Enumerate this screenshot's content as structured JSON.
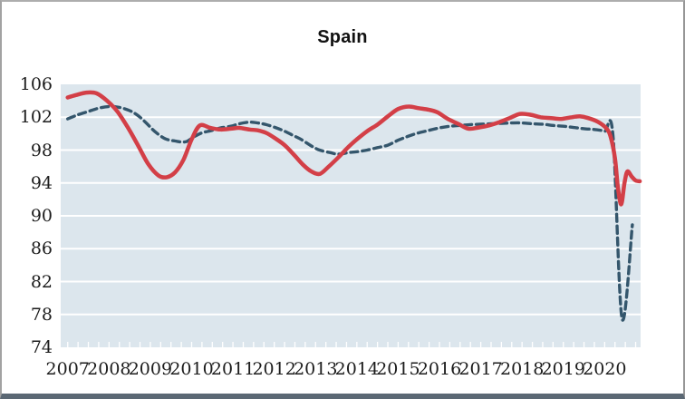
{
  "window": {
    "background": "#ffffff",
    "frame_border_color": "#a2a2a2",
    "frame_bottom_bar_color": "#5b6874"
  },
  "chart_data": {
    "type": "line",
    "title": "Spain",
    "xlabel": "",
    "ylabel": "",
    "xlim": [
      2006.83,
      2020.87
    ],
    "ylim": [
      74,
      106
    ],
    "y_ticks": [
      106,
      102,
      98,
      94,
      90,
      86,
      82,
      78,
      74
    ],
    "x_tick_years": [
      2007,
      2008,
      2009,
      2010,
      2011,
      2012,
      2013,
      2014,
      2015,
      2016,
      2017,
      2018,
      2019,
      2020
    ],
    "minor_x_tick_interval_years": 0.25,
    "grid": "horizontal",
    "gridline_color": "#ffffff",
    "plot_background": "#dce6ed",
    "axis_text_color": "#1c1c1c",
    "legend": "none",
    "series": [
      {
        "name": "red-solid",
        "style": "solid",
        "color": "#d33f47",
        "stroke_width": 4.5,
        "points": [
          [
            2007.0,
            104.4
          ],
          [
            2007.2,
            104.7
          ],
          [
            2007.45,
            105.0
          ],
          [
            2007.7,
            104.9
          ],
          [
            2007.95,
            104.0
          ],
          [
            2008.2,
            102.7
          ],
          [
            2008.45,
            100.8
          ],
          [
            2008.7,
            98.6
          ],
          [
            2008.95,
            96.3
          ],
          [
            2009.2,
            94.9
          ],
          [
            2009.4,
            94.7
          ],
          [
            2009.6,
            95.3
          ],
          [
            2009.8,
            96.8
          ],
          [
            2010.0,
            99.3
          ],
          [
            2010.2,
            101.0
          ],
          [
            2010.45,
            100.7
          ],
          [
            2010.7,
            100.5
          ],
          [
            2010.95,
            100.6
          ],
          [
            2011.15,
            100.7
          ],
          [
            2011.4,
            100.5
          ],
          [
            2011.6,
            100.4
          ],
          [
            2011.8,
            100.1
          ],
          [
            2012.0,
            99.5
          ],
          [
            2012.25,
            98.6
          ],
          [
            2012.5,
            97.3
          ],
          [
            2012.7,
            96.2
          ],
          [
            2012.9,
            95.4
          ],
          [
            2013.1,
            95.1
          ],
          [
            2013.3,
            95.9
          ],
          [
            2013.55,
            97.1
          ],
          [
            2013.8,
            98.4
          ],
          [
            2014.0,
            99.3
          ],
          [
            2014.25,
            100.3
          ],
          [
            2014.5,
            101.1
          ],
          [
            2014.75,
            102.1
          ],
          [
            2015.0,
            103.0
          ],
          [
            2015.25,
            103.3
          ],
          [
            2015.5,
            103.1
          ],
          [
            2015.75,
            102.9
          ],
          [
            2015.95,
            102.6
          ],
          [
            2016.2,
            101.8
          ],
          [
            2016.45,
            101.2
          ],
          [
            2016.7,
            100.6
          ],
          [
            2016.95,
            100.75
          ],
          [
            2017.2,
            101.0
          ],
          [
            2017.45,
            101.4
          ],
          [
            2017.7,
            101.9
          ],
          [
            2017.95,
            102.4
          ],
          [
            2018.2,
            102.3
          ],
          [
            2018.45,
            102.0
          ],
          [
            2018.7,
            101.9
          ],
          [
            2018.95,
            101.8
          ],
          [
            2019.2,
            102.0
          ],
          [
            2019.4,
            102.1
          ],
          [
            2019.6,
            101.9
          ],
          [
            2019.85,
            101.4
          ],
          [
            2020.05,
            100.6
          ],
          [
            2020.15,
            99.5
          ],
          [
            2020.25,
            97.0
          ],
          [
            2020.32,
            93.5
          ],
          [
            2020.4,
            91.4
          ],
          [
            2020.48,
            94.0
          ],
          [
            2020.55,
            95.4
          ],
          [
            2020.65,
            94.8
          ],
          [
            2020.75,
            94.3
          ],
          [
            2020.85,
            94.2
          ]
        ]
      },
      {
        "name": "blue-dashed",
        "style": "dashed",
        "color": "#34566c",
        "stroke_width": 3.4,
        "dash_pattern": "8 5",
        "points": [
          [
            2007.0,
            101.8
          ],
          [
            2007.25,
            102.3
          ],
          [
            2007.5,
            102.7
          ],
          [
            2007.75,
            103.1
          ],
          [
            2008.0,
            103.3
          ],
          [
            2008.25,
            103.2
          ],
          [
            2008.5,
            102.8
          ],
          [
            2008.7,
            102.2
          ],
          [
            2008.9,
            101.3
          ],
          [
            2009.1,
            100.3
          ],
          [
            2009.35,
            99.4
          ],
          [
            2009.6,
            99.1
          ],
          [
            2009.85,
            99.0
          ],
          [
            2010.05,
            99.6
          ],
          [
            2010.25,
            100.1
          ],
          [
            2010.5,
            100.4
          ],
          [
            2010.7,
            100.7
          ],
          [
            2010.95,
            100.9
          ],
          [
            2011.15,
            101.2
          ],
          [
            2011.4,
            101.4
          ],
          [
            2011.6,
            101.3
          ],
          [
            2011.8,
            101.1
          ],
          [
            2012.05,
            100.7
          ],
          [
            2012.25,
            100.3
          ],
          [
            2012.45,
            99.8
          ],
          [
            2012.65,
            99.3
          ],
          [
            2012.9,
            98.5
          ],
          [
            2013.1,
            98.0
          ],
          [
            2013.35,
            97.7
          ],
          [
            2013.55,
            97.5
          ],
          [
            2013.8,
            97.7
          ],
          [
            2014.0,
            97.8
          ],
          [
            2014.25,
            98.0
          ],
          [
            2014.5,
            98.3
          ],
          [
            2014.75,
            98.6
          ],
          [
            2015.0,
            99.2
          ],
          [
            2015.25,
            99.7
          ],
          [
            2015.5,
            100.1
          ],
          [
            2015.75,
            100.4
          ],
          [
            2016.0,
            100.7
          ],
          [
            2016.25,
            100.9
          ],
          [
            2016.5,
            101.0
          ],
          [
            2016.75,
            101.1
          ],
          [
            2017.0,
            101.15
          ],
          [
            2017.25,
            101.2
          ],
          [
            2017.5,
            101.25
          ],
          [
            2017.75,
            101.3
          ],
          [
            2018.0,
            101.3
          ],
          [
            2018.25,
            101.2
          ],
          [
            2018.5,
            101.15
          ],
          [
            2018.75,
            101.0
          ],
          [
            2019.0,
            100.9
          ],
          [
            2019.25,
            100.75
          ],
          [
            2019.5,
            100.6
          ],
          [
            2019.75,
            100.5
          ],
          [
            2020.0,
            100.3
          ],
          [
            2020.2,
            99.8
          ],
          [
            2020.42,
            77.5
          ],
          [
            2020.67,
            88.9
          ]
        ]
      }
    ]
  }
}
